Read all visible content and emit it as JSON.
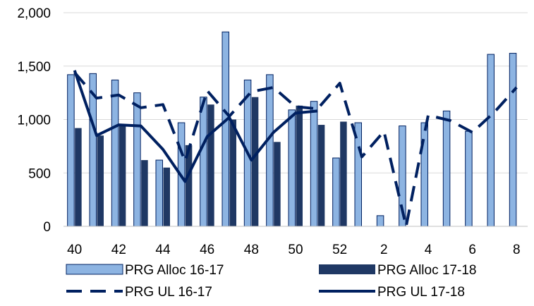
{
  "chart_data": {
    "type": "bar",
    "title": "",
    "xlabel": "",
    "ylabel": "",
    "ylim": [
      0,
      2000
    ],
    "yticks": [
      "0",
      "500",
      "1,000",
      "1,500",
      "2,000"
    ],
    "ytick_values": [
      0,
      500,
      1000,
      1500,
      2000
    ],
    "categories": [
      "40",
      "41",
      "42",
      "43",
      "44",
      "45",
      "46",
      "47",
      "48",
      "49",
      "50",
      "51",
      "52",
      "1",
      "2",
      "3",
      "4",
      "5",
      "6",
      "7",
      "8"
    ],
    "xtick_labels": [
      "40",
      "",
      "42",
      "",
      "44",
      "",
      "46",
      "",
      "48",
      "",
      "50",
      "",
      "52",
      "",
      "2",
      "",
      "4",
      "",
      "6",
      "",
      "8"
    ],
    "grid": "horizontal",
    "legend_position": "bottom",
    "colors": {
      "alloc_1617": "#8DB4E2",
      "alloc_1718": "#1F3864",
      "ul_1617": "#002060",
      "ul_1718": "#002060",
      "bar_edge": "#002060",
      "grid": "#D9D9D9"
    },
    "series": [
      {
        "key": "alloc_1617",
        "name": "PRG Alloc 16-17",
        "kind": "bar",
        "values": [
          1420,
          1430,
          1370,
          1250,
          620,
          970,
          1210,
          1820,
          1370,
          1420,
          1090,
          1170,
          640,
          970,
          100,
          940,
          970,
          1080,
          890,
          1610,
          1620
        ]
      },
      {
        "key": "alloc_1718",
        "name": "PRG Alloc 17-18",
        "kind": "bar",
        "values": [
          920,
          850,
          950,
          620,
          550,
          760,
          1140,
          1000,
          1210,
          790,
          1130,
          950,
          980,
          null,
          null,
          null,
          null,
          null,
          null,
          null,
          null
        ]
      },
      {
        "key": "ul_1617",
        "name": "PRG UL 16-17",
        "kind": "line",
        "dash": true,
        "values": [
          1440,
          1200,
          1230,
          1110,
          1140,
          610,
          1270,
          1030,
          1260,
          1300,
          1120,
          1100,
          1340,
          650,
          890,
          0,
          1040,
          990,
          880,
          1070,
          1300
        ]
      },
      {
        "key": "ul_1718",
        "name": "PRG UL 17-18",
        "kind": "line",
        "dash": false,
        "values": [
          1460,
          850,
          950,
          940,
          720,
          420,
          840,
          1020,
          620,
          880,
          1060,
          1080,
          null,
          null,
          null,
          null,
          null,
          null,
          null,
          null,
          null
        ]
      }
    ]
  }
}
